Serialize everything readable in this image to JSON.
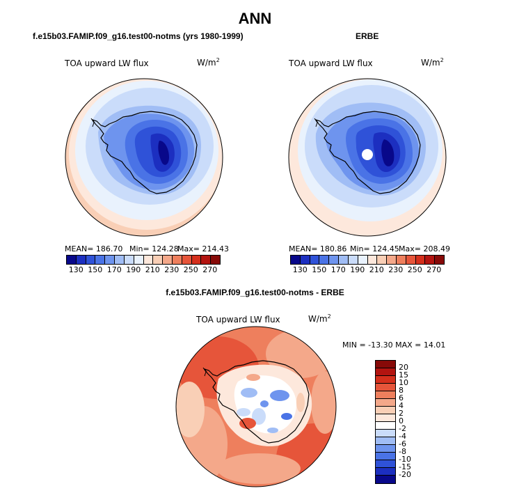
{
  "title": "ANN",
  "panels": {
    "model": {
      "header": "f.e15b03.FAMIP.f09_g16.test00-notms (yrs 1980-1999)",
      "variable": "TOA upward LW flux",
      "units": "W/m",
      "units_exp": "2",
      "mean": "MEAN= 186.70",
      "min": "Min= 124.28",
      "max": "Max= 214.43"
    },
    "obs": {
      "header": "ERBE",
      "variable": "TOA upward LW flux",
      "units": "W/m",
      "units_exp": "2",
      "mean": "MEAN= 180.86",
      "min": "Min= 124.45",
      "max": "Max= 208.49"
    },
    "diff": {
      "header": "f.e15b03.FAMIP.f09_g16.test00-notms - ERBE",
      "variable": "TOA upward LW flux",
      "units": "W/m",
      "units_exp": "2",
      "minmax": "MIN = -13.30 MAX =  14.01"
    }
  },
  "colorbar_abs": {
    "ticks": [
      "130",
      "150",
      "170",
      "190",
      "210",
      "230",
      "250",
      "270"
    ],
    "colors": [
      "#08088a",
      "#1c2fc0",
      "#2f52d8",
      "#4a73e6",
      "#6e94ee",
      "#a0bdf5",
      "#cadcfa",
      "#e9f2fd",
      "#fde8dc",
      "#f9cfb6",
      "#f4a88a",
      "#ee7f5d",
      "#e6553a",
      "#d52f1c",
      "#b31410",
      "#870a08"
    ]
  },
  "colorbar_diff": {
    "ticks": [
      "20",
      "15",
      "10",
      "8",
      "6",
      "4",
      "2",
      "0",
      "-2",
      "-4",
      "-6",
      "-8",
      "-10",
      "-15",
      "-20"
    ],
    "colors": [
      "#870a08",
      "#b31410",
      "#d52f1c",
      "#e6553a",
      "#ee7f5d",
      "#f4a88a",
      "#f9cfb6",
      "#fde8dc",
      "#ffffff",
      "#cadcfa",
      "#a0bdf5",
      "#6e94ee",
      "#4a73e6",
      "#2f52d8",
      "#1c2fc0",
      "#08088a"
    ]
  }
}
